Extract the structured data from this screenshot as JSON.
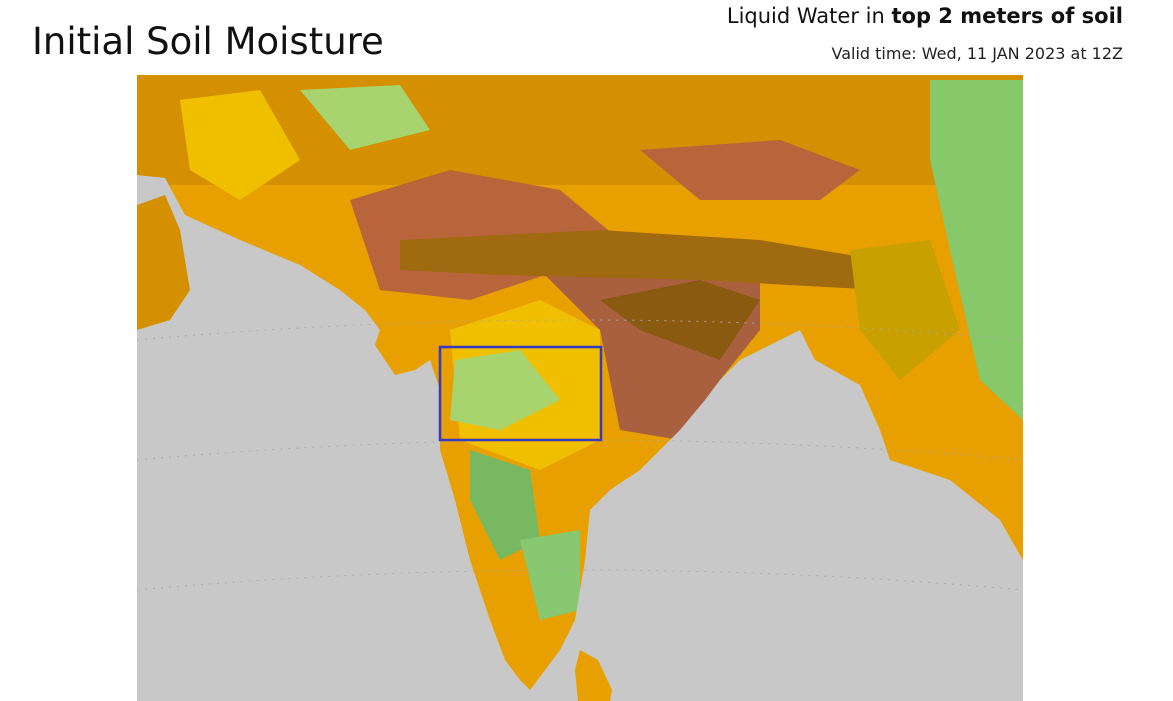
{
  "header": {
    "title": "Initial Soil Moisture",
    "subtitle_plain": "Liquid Water in",
    "subtitle_bold": "top 2 meters of soil",
    "valid_time": "Valid time: Wed, 11 JAN 2023 at 12Z"
  }
}
